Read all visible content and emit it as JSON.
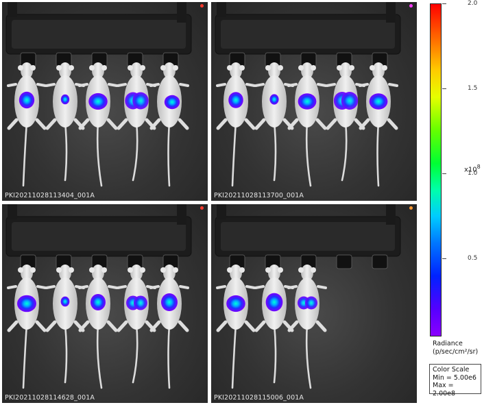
{
  "panels": [
    {
      "caption": "PKI20211028113404_001A",
      "marker_color": "#ff3b2f",
      "mice": [
        {
          "signal": 0.55,
          "shape": "round"
        },
        {
          "signal": 0.3,
          "shape": "small"
        },
        {
          "signal": 0.7,
          "shape": "wide"
        },
        {
          "signal": 0.75,
          "shape": "double"
        },
        {
          "signal": 0.55,
          "shape": "offset"
        }
      ]
    },
    {
      "caption": "PKI20211028113700_001A",
      "marker_color": "#ff3bff",
      "mice": [
        {
          "signal": 0.45,
          "shape": "round"
        },
        {
          "signal": 0.4,
          "shape": "small"
        },
        {
          "signal": 0.6,
          "shape": "wide"
        },
        {
          "signal": 0.8,
          "shape": "double"
        },
        {
          "signal": 0.6,
          "shape": "wide"
        }
      ]
    },
    {
      "caption": "PKI20211028114628_001A",
      "marker_color": "#ff3b2f",
      "mice": [
        {
          "signal": 0.75,
          "shape": "wide"
        },
        {
          "signal": 0.35,
          "shape": "small"
        },
        {
          "signal": 0.5,
          "shape": "round"
        },
        {
          "signal": 0.55,
          "shape": "double"
        },
        {
          "signal": 0.75,
          "shape": "round"
        }
      ]
    },
    {
      "caption": "PKI20211028115006_001A",
      "marker_color": "#ff9933",
      "mice": [
        {
          "signal": 0.7,
          "shape": "wide"
        },
        {
          "signal": 0.85,
          "shape": "round"
        },
        {
          "signal": 0.45,
          "shape": "double"
        }
      ]
    }
  ],
  "color_scale": {
    "tick_labels": [
      "2.0",
      "1.5",
      "1.0",
      "0.5"
    ],
    "exponent_base": "x10",
    "exponent": "8",
    "title_line1": "Radiance",
    "title_line2": "(p/sec/cm²/sr)",
    "box_title": "Color Scale",
    "min_label": "Min = 5.00e6",
    "max_label": "Max = 2.00e8"
  }
}
